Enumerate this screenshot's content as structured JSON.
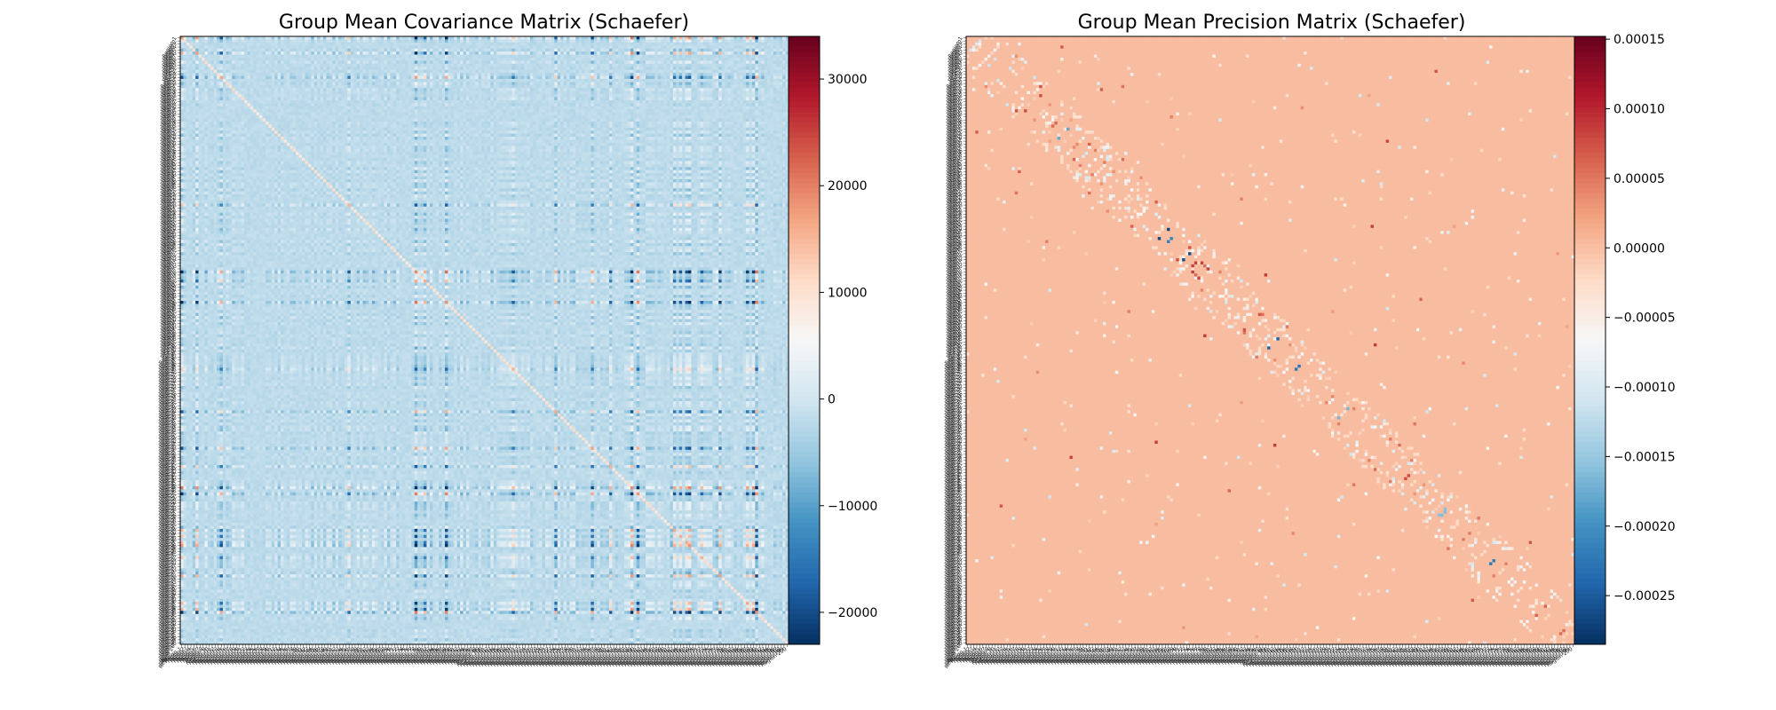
{
  "chart_data": [
    {
      "type": "heatmap",
      "title": "Group Mean Covariance Matrix (Schaefer)",
      "n_regions": 200,
      "region_label_prefix": "Region ",
      "colormap": "RdBu_r",
      "value_range": [
        -23000,
        34000
      ],
      "colorbar_ticks": [
        {
          "value": 30000,
          "label": "30000"
        },
        {
          "value": 20000,
          "label": "20000"
        },
        {
          "value": 10000,
          "label": "10000"
        },
        {
          "value": 0,
          "label": "0"
        },
        {
          "value": -10000,
          "label": "−10000"
        },
        {
          "value": -20000,
          "label": "−20000"
        }
      ],
      "pattern": "strong row/column banding; positive cross-products up to ~30000, negative down to ~-22000"
    },
    {
      "type": "heatmap",
      "title": "Group Mean Precision Matrix (Schaefer)",
      "n_regions": 200,
      "region_label_prefix": "Region ",
      "colormap": "RdBu_r",
      "value_range": [
        -0.000285,
        0.000152
      ],
      "colorbar_ticks": [
        {
          "value": 0.00015,
          "label": "0.00015"
        },
        {
          "value": 0.0001,
          "label": "0.00010"
        },
        {
          "value": 5e-05,
          "label": "0.00005"
        },
        {
          "value": 0.0,
          "label": "0.00000"
        },
        {
          "value": -5e-05,
          "label": "−0.00005"
        },
        {
          "value": -0.0001,
          "label": "−0.00010"
        },
        {
          "value": -0.00015,
          "label": "−0.00015"
        },
        {
          "value": -0.0002,
          "label": "−0.00020"
        },
        {
          "value": -0.00025,
          "label": "−0.00025"
        }
      ],
      "pattern": "mostly ~0 background with sparse off-diagonal values and blocks near the diagonal"
    }
  ]
}
